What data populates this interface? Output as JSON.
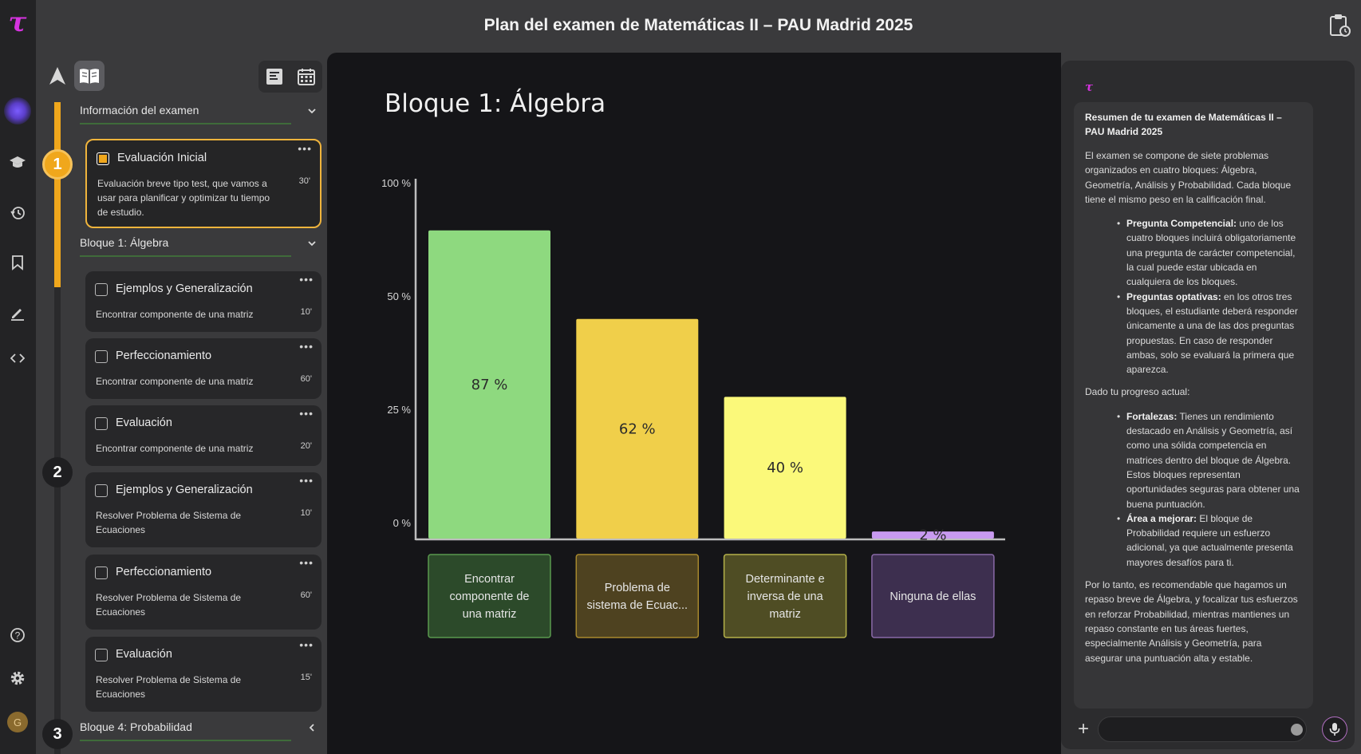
{
  "window": {
    "title": "Plan del examen de Matemáticas II – PAU Madrid 2025"
  },
  "rail": {
    "logo": "τ",
    "user_initial": "G",
    "icons": [
      "graduation-cap-icon",
      "history-icon",
      "bookmark-icon",
      "pen-icon",
      "code-icon",
      "help-icon",
      "settings-icon"
    ]
  },
  "plan": {
    "steps": [
      "1",
      "2",
      "3"
    ],
    "sections": [
      {
        "label": "Información del examen",
        "expanded": true
      },
      {
        "label": "Bloque 1: Álgebra",
        "expanded": true
      },
      {
        "label": "Bloque 4: Probabilidad",
        "expanded": false
      }
    ],
    "cards": [
      {
        "title": "Evaluación Inicial",
        "desc": "Evaluación breve tipo test, que vamos a usar para planificar y optimizar tu tiempo de estudio.",
        "time": "30'",
        "checked": true,
        "active": true
      },
      {
        "title": "Ejemplos y Generalización",
        "desc": "Encontrar componente de una matriz",
        "time": "10'",
        "checked": false
      },
      {
        "title": "Perfeccionamiento",
        "desc": "Encontrar componente de una matriz",
        "time": "60'",
        "checked": false
      },
      {
        "title": "Evaluación",
        "desc": "Encontrar componente de una matriz",
        "time": "20'",
        "checked": false
      },
      {
        "title": "Ejemplos y Generalización",
        "desc": "Resolver Problema de Sistema de Ecuaciones",
        "time": "10'",
        "checked": false
      },
      {
        "title": "Perfeccionamiento",
        "desc": "Resolver Problema de Sistema de Ecuaciones",
        "time": "60'",
        "checked": false
      },
      {
        "title": "Evaluación",
        "desc": "Resolver Problema de Sistema de Ecuaciones",
        "time": "15'",
        "checked": false
      }
    ],
    "more_label": "•••"
  },
  "chart_data": {
    "type": "bar",
    "title": "Bloque 1: Álgebra",
    "categories": [
      "Encontrar componente de una matriz",
      "Problema de sistema de Ecuac...",
      "Determinante e inversa de una matriz",
      "Ninguna de ellas"
    ],
    "category_lines": [
      [
        "Encontrar",
        "componente de",
        "una matriz"
      ],
      [
        "Problema de",
        "sistema de Ecuac..."
      ],
      [
        "Determinante e",
        "inversa de una",
        "matriz"
      ],
      [
        "Ninguna de ellas"
      ]
    ],
    "values": [
      87,
      62,
      40,
      2
    ],
    "value_labels": [
      "87 %",
      "62 %",
      "40 %",
      "2 %"
    ],
    "y_ticks": [
      "100 %",
      "50 %",
      "25 %",
      "0 %"
    ],
    "ylim": [
      0,
      100
    ],
    "bar_colors": [
      "#8ed97f",
      "#f0cf4a",
      "#fbf97a",
      "#c89af0"
    ],
    "label_bg_colors": [
      "#2c4a2a",
      "#4e4220",
      "#4f4d24",
      "#3d2f4f"
    ],
    "label_border_colors": [
      "#5a9a4e",
      "#a8892e",
      "#b5b24a",
      "#8a6aa8"
    ],
    "grid": false
  },
  "chat": {
    "logo": "τ",
    "summary_title": "Resumen de tu examen de Matemáticas II – PAU Madrid 2025",
    "intro": "El examen se compone de siete problemas organizados en cuatro bloques: Álgebra, Geometría, Análisis y Probabilidad. Cada bloque tiene el mismo peso en la calificación final.",
    "bullets1": [
      {
        "bold": "Pregunta Competencial:",
        "text": " uno de los cuatro bloques incluirá obligatoriamente una pregunta de carácter competencial, la cual puede estar ubicada en cualquiera de los bloques."
      },
      {
        "bold": "Preguntas optativas:",
        "text": " en los otros tres bloques, el estudiante deberá responder únicamente a una de las dos preguntas propuestas. En caso de responder ambas, solo se evaluará la primera que aparezca."
      }
    ],
    "progress_intro": "Dado tu progreso actual:",
    "bullets2": [
      {
        "bold": "Fortalezas:",
        "text": " Tienes un rendimiento destacado en Análisis y Geometría, así como una sólida competencia en matrices dentro del bloque de Álgebra. Estos bloques representan oportunidades seguras para obtener una buena puntuación."
      },
      {
        "bold": "Área a mejorar:",
        "text": " El bloque de Probabilidad requiere un esfuerzo adicional, ya que actualmente presenta mayores desafíos para ti."
      }
    ],
    "conclusion": "Por lo tanto, es recomendable que hagamos un repaso breve de Álgebra, y focalizar tus esfuerzos en reforzar Probabilidad, mientras mantienes un repaso constante en tus áreas fuertes, especialmente Análisis y Geometría, para asegurar una puntuación alta y estable.",
    "input_value": "",
    "input_placeholder": "",
    "plus_label": "+"
  }
}
